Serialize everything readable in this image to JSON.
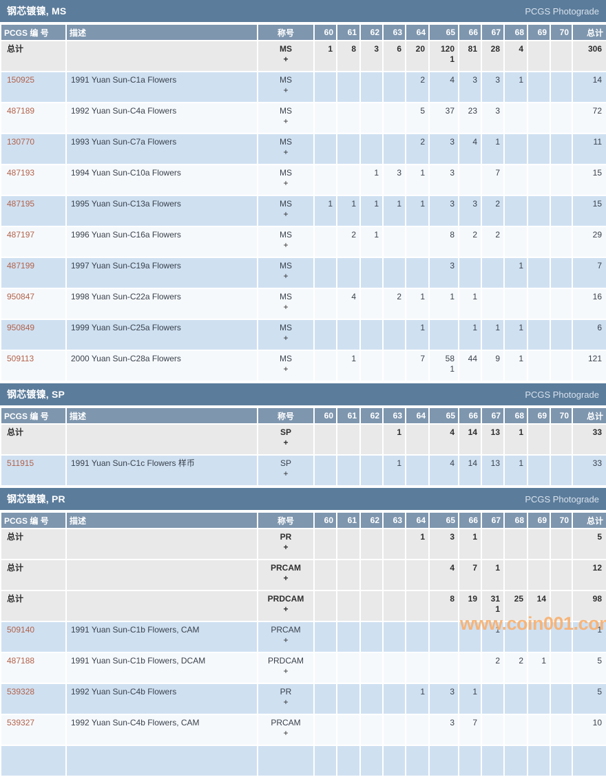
{
  "page": {
    "photograde_label": "PCGS Photograde",
    "watermark": "www.coin001.com"
  },
  "columns": {
    "id": "PCGS 编 号",
    "desc": "描述",
    "designation": "称号",
    "grades": [
      "60",
      "61",
      "62",
      "63",
      "64",
      "65",
      "66",
      "67",
      "68",
      "69",
      "70"
    ],
    "total": "总计"
  },
  "sections": [
    {
      "key": "ms",
      "title": "钢芯镀镍, MS",
      "rows": [
        {
          "id": "总计",
          "id_is_link": false,
          "desc": "",
          "designation": "MS",
          "plus": "+",
          "style": "total",
          "grades": [
            [
              "1"
            ],
            [
              "8"
            ],
            [
              "3"
            ],
            [
              "6"
            ],
            [
              "20"
            ],
            [
              "120",
              "1"
            ],
            [
              "81"
            ],
            [
              "28"
            ],
            [
              "4"
            ],
            [],
            []
          ],
          "total": "306"
        },
        {
          "id": "150925",
          "id_is_link": true,
          "desc": "1991 Yuan Sun-C1a Flowers",
          "designation": "MS",
          "plus": "+",
          "style": "blue",
          "grades": [
            [],
            [],
            [],
            [],
            [
              "2"
            ],
            [
              "4"
            ],
            [
              "3"
            ],
            [
              "3"
            ],
            [
              "1"
            ],
            [],
            []
          ],
          "total": "14"
        },
        {
          "id": "487189",
          "id_is_link": true,
          "desc": "1992 Yuan Sun-C4a Flowers",
          "designation": "MS",
          "plus": "+",
          "style": "white",
          "grades": [
            [],
            [],
            [],
            [],
            [
              "5"
            ],
            [
              "37"
            ],
            [
              "23"
            ],
            [
              "3"
            ],
            [],
            [],
            []
          ],
          "total": "72"
        },
        {
          "id": "130770",
          "id_is_link": true,
          "desc": "1993 Yuan Sun-C7a Flowers",
          "designation": "MS",
          "plus": "+",
          "style": "blue",
          "grades": [
            [],
            [],
            [],
            [],
            [
              "2"
            ],
            [
              "3"
            ],
            [
              "4"
            ],
            [
              "1"
            ],
            [],
            [],
            []
          ],
          "total": "11"
        },
        {
          "id": "487193",
          "id_is_link": true,
          "desc": "1994 Yuan Sun-C10a Flowers",
          "designation": "MS",
          "plus": "+",
          "style": "white",
          "grades": [
            [],
            [],
            [
              "1"
            ],
            [
              "3"
            ],
            [
              "1"
            ],
            [
              "3"
            ],
            [],
            [
              "7"
            ],
            [],
            [],
            []
          ],
          "total": "15"
        },
        {
          "id": "487195",
          "id_is_link": true,
          "desc": "1995 Yuan Sun-C13a Flowers",
          "designation": "MS",
          "plus": "+",
          "style": "blue",
          "grades": [
            [
              "1"
            ],
            [
              "1"
            ],
            [
              "1"
            ],
            [
              "1"
            ],
            [
              "1"
            ],
            [
              "3"
            ],
            [
              "3"
            ],
            [
              "2"
            ],
            [],
            [],
            []
          ],
          "total": "15"
        },
        {
          "id": "487197",
          "id_is_link": true,
          "desc": "1996 Yuan Sun-C16a Flowers",
          "designation": "MS",
          "plus": "+",
          "style": "white",
          "grades": [
            [],
            [
              "2"
            ],
            [
              "1"
            ],
            [],
            [],
            [
              "8"
            ],
            [
              "2"
            ],
            [
              "2"
            ],
            [],
            [],
            []
          ],
          "total": "29"
        },
        {
          "id": "487199",
          "id_is_link": true,
          "desc": "1997 Yuan Sun-C19a Flowers",
          "designation": "MS",
          "plus": "+",
          "style": "blue",
          "grades": [
            [],
            [],
            [],
            [],
            [],
            [
              "3"
            ],
            [],
            [],
            [
              "1"
            ],
            [],
            []
          ],
          "total": "7"
        },
        {
          "id": "950847",
          "id_is_link": true,
          "desc": "1998 Yuan Sun-C22a Flowers",
          "designation": "MS",
          "plus": "+",
          "style": "white",
          "grades": [
            [],
            [
              "4"
            ],
            [],
            [
              "2"
            ],
            [
              "1"
            ],
            [
              "1"
            ],
            [
              "1"
            ],
            [],
            [],
            [],
            []
          ],
          "total": "16"
        },
        {
          "id": "950849",
          "id_is_link": true,
          "desc": "1999 Yuan Sun-C25a Flowers",
          "designation": "MS",
          "plus": "+",
          "style": "blue",
          "grades": [
            [],
            [],
            [],
            [],
            [
              "1"
            ],
            [],
            [
              "1"
            ],
            [
              "1"
            ],
            [
              "1"
            ],
            [],
            []
          ],
          "total": "6"
        },
        {
          "id": "509113",
          "id_is_link": true,
          "desc": "2000 Yuan Sun-C28a Flowers",
          "designation": "MS",
          "plus": "+",
          "style": "white",
          "grades": [
            [],
            [
              "1"
            ],
            [],
            [],
            [
              "7"
            ],
            [
              "58",
              "1"
            ],
            [
              "44"
            ],
            [
              "9"
            ],
            [
              "1"
            ],
            [],
            []
          ],
          "total": "121"
        }
      ]
    },
    {
      "key": "sp",
      "title": "钢芯镀镍, SP",
      "rows": [
        {
          "id": "总计",
          "id_is_link": false,
          "desc": "",
          "designation": "SP",
          "plus": "+",
          "style": "total",
          "grades": [
            [],
            [],
            [],
            [
              "1"
            ],
            [],
            [
              "4"
            ],
            [
              "14"
            ],
            [
              "13"
            ],
            [
              "1"
            ],
            [],
            []
          ],
          "total": "33"
        },
        {
          "id": "511915",
          "id_is_link": true,
          "desc": "1991 Yuan Sun-C1c Flowers 样币",
          "designation": "SP",
          "plus": "+",
          "style": "blue",
          "grades": [
            [],
            [],
            [],
            [
              "1"
            ],
            [],
            [
              "4"
            ],
            [
              "14"
            ],
            [
              "13"
            ],
            [
              "1"
            ],
            [],
            []
          ],
          "total": "33"
        }
      ]
    },
    {
      "key": "pr",
      "title": "钢芯镀镍, PR",
      "rows": [
        {
          "id": "总计",
          "id_is_link": false,
          "desc": "",
          "designation": "PR",
          "plus": "+",
          "style": "total",
          "grades": [
            [],
            [],
            [],
            [],
            [
              "1"
            ],
            [
              "3"
            ],
            [
              "1"
            ],
            [],
            [],
            [],
            []
          ],
          "total": "5"
        },
        {
          "id": "总计",
          "id_is_link": false,
          "desc": "",
          "designation": "PRCAM",
          "plus": "+",
          "style": "total",
          "grades": [
            [],
            [],
            [],
            [],
            [],
            [
              "4"
            ],
            [
              "7"
            ],
            [
              "1"
            ],
            [],
            [],
            []
          ],
          "total": "12"
        },
        {
          "id": "总计",
          "id_is_link": false,
          "desc": "",
          "designation": "PRDCAM",
          "plus": "+",
          "style": "total",
          "grades": [
            [],
            [],
            [],
            [],
            [],
            [
              "8"
            ],
            [
              "19"
            ],
            [
              "31",
              "1"
            ],
            [
              "25"
            ],
            [
              "14"
            ],
            []
          ],
          "total": "98"
        },
        {
          "id": "509140",
          "id_is_link": true,
          "desc": "1991 Yuan Sun-C1b Flowers, CAM",
          "designation": "PRCAM",
          "plus": "+",
          "style": "blue",
          "grades": [
            [],
            [],
            [],
            [],
            [],
            [],
            [],
            [
              "1"
            ],
            [],
            [],
            []
          ],
          "total": "1"
        },
        {
          "id": "487188",
          "id_is_link": true,
          "desc": "1991 Yuan Sun-C1b Flowers, DCAM",
          "designation": "PRDCAM",
          "plus": "+",
          "style": "white",
          "grades": [
            [],
            [],
            [],
            [],
            [],
            [],
            [],
            [
              "2"
            ],
            [
              "2"
            ],
            [
              "1"
            ],
            []
          ],
          "total": "5"
        },
        {
          "id": "539328",
          "id_is_link": true,
          "desc": "1992 Yuan Sun-C4b Flowers",
          "designation": "PR",
          "plus": "+",
          "style": "blue",
          "grades": [
            [],
            [],
            [],
            [],
            [
              "1"
            ],
            [
              "3"
            ],
            [
              "1"
            ],
            [],
            [],
            [],
            []
          ],
          "total": "5"
        },
        {
          "id": "539327",
          "id_is_link": true,
          "desc": "1992 Yuan Sun-C4b Flowers, CAM",
          "designation": "PRCAM",
          "plus": "+",
          "style": "white",
          "grades": [
            [],
            [],
            [],
            [],
            [],
            [
              "3"
            ],
            [
              "7"
            ],
            [],
            [],
            [],
            []
          ],
          "total": "10"
        },
        {
          "id": "",
          "id_is_link": false,
          "desc": "",
          "designation": "",
          "plus": "",
          "style": "blue",
          "grades": [
            [],
            [],
            [],
            [],
            [],
            [],
            [],
            [],
            [],
            [],
            []
          ],
          "total": ""
        }
      ]
    }
  ]
}
